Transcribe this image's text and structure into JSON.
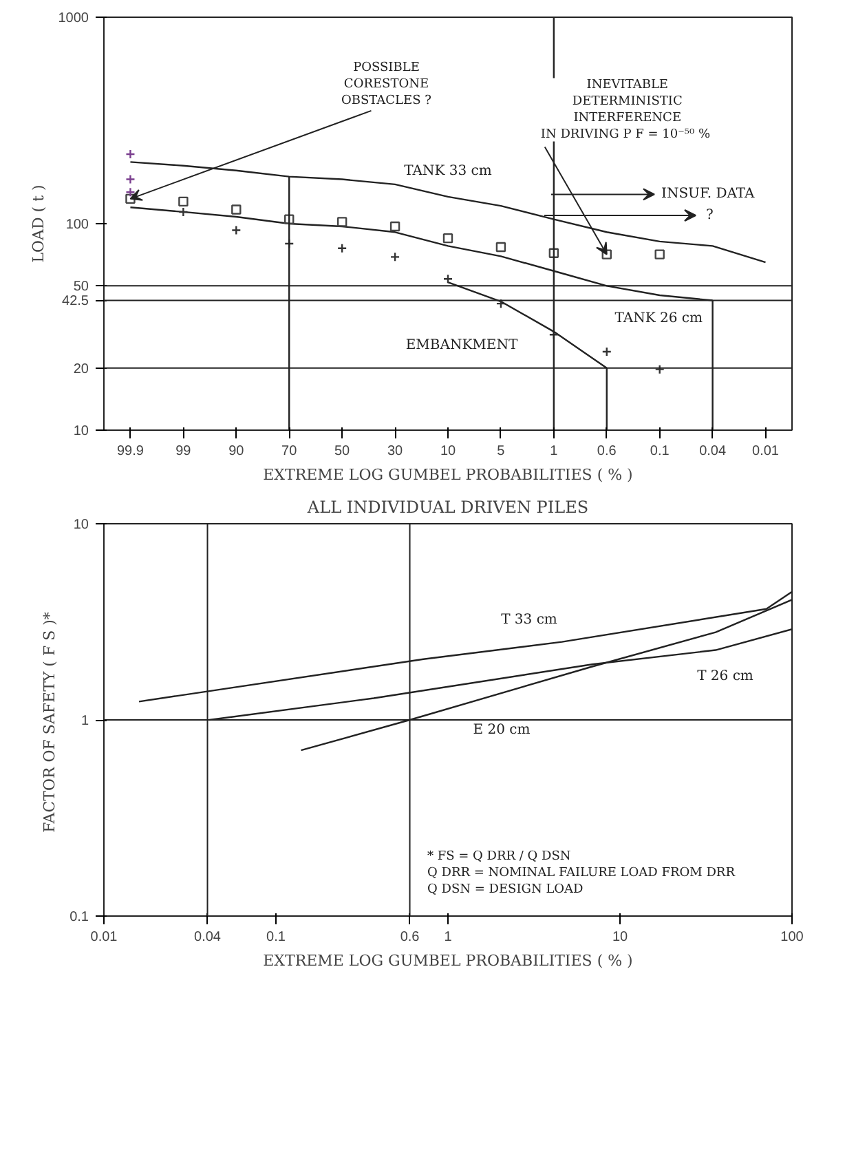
{
  "chart_data": [
    {
      "type": "line",
      "xlabel": "EXTREME LOG GUMBEL PROBABILITIES ( % )",
      "ylabel": "LOAD ( t )",
      "log": "y",
      "grid": false,
      "categories": [
        "99.9",
        "99",
        "90",
        "70",
        "50",
        "30",
        "10",
        "5",
        "1",
        "0.6",
        "0.1",
        "0.04",
        "0.01"
      ],
      "ylim": [
        10,
        1000
      ],
      "yticks": [
        10,
        20,
        42.5,
        50,
        100,
        1000
      ],
      "series": [
        {
          "type": "line",
          "color": "#222222",
          "values": [
            199,
            191,
            181,
            169,
            164,
            155,
            135,
            122,
            105,
            91,
            82,
            78,
            65
          ]
        },
        {
          "type": "line",
          "color": "#222222",
          "values": [
            120,
            114,
            108,
            100,
            97,
            91,
            78,
            69.5,
            59,
            50,
            45,
            42.5,
            null
          ]
        },
        {
          "type": "line",
          "color": "#222222",
          "values": [
            null,
            null,
            null,
            null,
            null,
            null,
            52,
            42,
            30,
            20,
            null,
            null,
            null
          ]
        },
        {
          "type": "scatter",
          "marker": "square",
          "color": "#444444",
          "values": [
            132,
            128,
            117,
            105,
            102,
            97,
            85,
            77,
            72,
            71,
            71,
            null,
            null
          ]
        },
        {
          "type": "scatter",
          "marker": "cross",
          "color": "#333333",
          "values": [
            null,
            114,
            93,
            80,
            76,
            69,
            54,
            41,
            29,
            24,
            19.7,
            null,
            null
          ]
        },
        {
          "type": "scatter",
          "marker": "cross",
          "color": "#7b3f8f",
          "x": [
            "99.9",
            "99.9",
            "99.9"
          ],
          "values": [
            217,
            164,
            142
          ]
        },
        {
          "type": "line",
          "color": "#222222",
          "x": [
            "70",
            "70"
          ],
          "values": [
            10,
            169
          ]
        },
        {
          "type": "line",
          "color": "#222222",
          "x": [
            "1",
            "1"
          ],
          "values": [
            10,
            1000
          ]
        },
        {
          "type": "line",
          "color": "#222222",
          "x": [
            "0.6",
            "0.6"
          ],
          "values": [
            10,
            20
          ]
        },
        {
          "type": "line",
          "color": "#222222",
          "x": [
            "0.04",
            "0.04"
          ],
          "values": [
            10,
            42.5
          ]
        }
      ],
      "ref_lines": [
        {
          "axis": "y",
          "value": 20
        },
        {
          "axis": "y",
          "value": 42.5
        },
        {
          "axis": "y",
          "value": 50
        }
      ],
      "annotations": [
        {
          "text": "POSSIBLE\nCORESTONE\nOBSTACLES ?",
          "x": "99.9",
          "y": 132
        },
        {
          "text": "INEVITABLE\nDETERMINISTIC\nINTERFERENCE\nIN DRIVING  P F = 10⁻⁵⁰ %",
          "x": "0.6",
          "y": 71
        },
        "INSUF. DATA",
        "?",
        "TANK 33 cm",
        "TANK 26 cm",
        "EMBANKMENT"
      ]
    },
    {
      "type": "line",
      "title": "ALL INDIVIDUAL DRIVEN PILES",
      "xlabel": "EXTREME LOG GUMBEL PROBABILITIES ( % )",
      "ylabel": "FACTOR OF SAFETY  ( F S )*",
      "log": "xy",
      "grid": false,
      "xlim": [
        0.01,
        100
      ],
      "ylim": [
        0.1,
        10
      ],
      "xticks": [
        0.01,
        0.04,
        0.1,
        0.6,
        1,
        10,
        100
      ],
      "yticks": [
        0.1,
        1,
        10
      ],
      "series": [
        {
          "color": "#222222",
          "x": [
            0.016,
            0.72,
            4.6,
            71,
            100
          ],
          "values": [
            1.24,
            2.04,
            2.5,
            3.68,
            4.5
          ]
        },
        {
          "color": "#222222",
          "x": [
            0.041,
            0.37,
            6.9,
            36,
            100
          ],
          "values": [
            1.0,
            1.29,
            1.92,
            2.27,
            2.9
          ]
        },
        {
          "color": "#222222",
          "x": [
            0.14,
            0.6,
            6.9,
            36,
            100
          ],
          "values": [
            0.7,
            1.0,
            1.87,
            2.8,
            4.1
          ]
        }
      ],
      "ref_lines": [
        {
          "axis": "y",
          "value": 1
        },
        {
          "axis": "x",
          "value": 0.04
        },
        {
          "axis": "x",
          "value": 0.6
        }
      ],
      "annotations": [
        "T 33 cm",
        "T 26 cm",
        "E 20 cm",
        "* FS = Q DRR / Q DSN\nQ DRR = NOMINAL FAILURE LOAD FROM DRR\nQ DSN = DESIGN LOAD"
      ]
    }
  ]
}
